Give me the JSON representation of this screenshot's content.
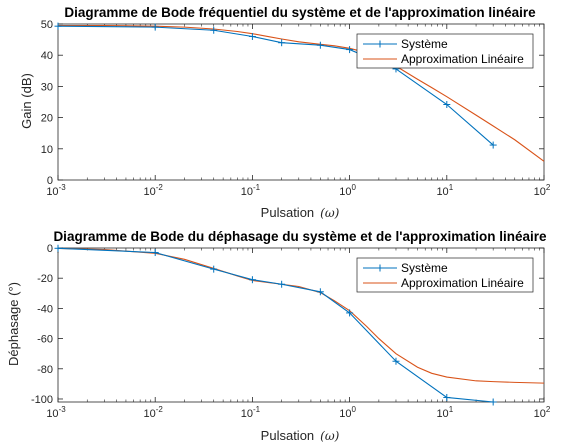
{
  "colors": {
    "systeme": "#0072BD",
    "approximation": "#D95319",
    "axes": "#262626",
    "grid": "#dcdcdc"
  },
  "chart_data": [
    {
      "type": "line",
      "title": "Diagramme de Bode fréquentiel du système et de l'approximation linéaire",
      "xlabel": "Pulsation",
      "xlabel_symbol": "(ω)",
      "ylabel": "Gain (dB)",
      "xscale": "log",
      "xlim": [
        0.001,
        100
      ],
      "ylim": [
        0,
        50
      ],
      "xticks": [
        0.001,
        0.01,
        0.1,
        1,
        10,
        100
      ],
      "xtick_labels": [
        [
          "10",
          "-3"
        ],
        [
          "10",
          "-2"
        ],
        [
          "10",
          "-1"
        ],
        [
          "10",
          "0"
        ],
        [
          "10",
          "1"
        ],
        [
          "10",
          "2"
        ]
      ],
      "yticks": [
        0,
        10,
        20,
        30,
        40,
        50
      ],
      "ytick_labels": [
        "0",
        "10",
        "20",
        "30",
        "40",
        "50"
      ],
      "grid": false,
      "legend_position": "top-right",
      "series": [
        {
          "name": "Système",
          "marker": "+",
          "color_key": "systeme",
          "x": [
            0.001,
            0.01,
            0.04,
            0.1,
            0.2,
            0.5,
            1,
            3,
            10,
            30
          ],
          "y": [
            49.3,
            49.0,
            48.0,
            46.0,
            44.0,
            43.2,
            41.8,
            35.6,
            24.2,
            11.2
          ]
        },
        {
          "name": "Approximation Linéaire",
          "marker": "",
          "color_key": "approximation",
          "x": [
            0.001,
            0.003,
            0.01,
            0.02,
            0.04,
            0.07,
            0.1,
            0.15,
            0.2,
            0.3,
            0.5,
            0.7,
            1,
            1.5,
            2,
            3,
            5,
            7,
            10,
            20,
            30,
            50,
            100
          ],
          "y": [
            49.5,
            49.5,
            49.3,
            49.0,
            48.4,
            47.6,
            46.9,
            45.9,
            45.2,
            44.3,
            43.5,
            43.0,
            42.2,
            40.8,
            39.3,
            36.5,
            32.3,
            29.6,
            26.7,
            20.8,
            17.3,
            12.9,
            6.0
          ]
        }
      ]
    },
    {
      "type": "line",
      "title": "Diagramme de Bode du déphasage du système et de l'approximation linéaire",
      "xlabel": "Pulsation",
      "xlabel_symbol": "(ω)",
      "ylabel": "Déphasage (°)",
      "xscale": "log",
      "xlim": [
        0.001,
        100
      ],
      "ylim": [
        -102,
        0
      ],
      "xticks": [
        0.001,
        0.01,
        0.1,
        1,
        10,
        100
      ],
      "xtick_labels": [
        [
          "10",
          "-3"
        ],
        [
          "10",
          "-2"
        ],
        [
          "10",
          "-1"
        ],
        [
          "10",
          "0"
        ],
        [
          "10",
          "1"
        ],
        [
          "10",
          "2"
        ]
      ],
      "yticks": [
        0,
        -20,
        -40,
        -60,
        -80,
        -100
      ],
      "ytick_labels": [
        "0",
        "-20",
        "-40",
        "-60",
        "-80",
        "-100"
      ],
      "grid": false,
      "legend_position": "top-right",
      "series": [
        {
          "name": "Système",
          "marker": "+",
          "color_key": "systeme",
          "x": [
            0.001,
            0.01,
            0.04,
            0.1,
            0.2,
            0.5,
            1,
            3,
            10,
            30
          ],
          "y": [
            -0.2,
            -3.0,
            -14.0,
            -21.0,
            -24.0,
            -29.0,
            -43.0,
            -75.0,
            -99.0,
            -102.0
          ]
        },
        {
          "name": "Approximation Linéaire",
          "marker": "",
          "color_key": "approximation",
          "x": [
            0.001,
            0.003,
            0.01,
            0.02,
            0.04,
            0.07,
            0.1,
            0.15,
            0.2,
            0.3,
            0.5,
            0.7,
            1,
            1.5,
            2,
            3,
            5,
            7,
            10,
            20,
            30,
            50,
            100
          ],
          "y": [
            -0.3,
            -1.0,
            -3.5,
            -7.5,
            -13.5,
            -18.5,
            -21.5,
            -23.0,
            -24.0,
            -25.5,
            -29.5,
            -35.0,
            -41.5,
            -52.0,
            -60.0,
            -70.0,
            -79.0,
            -83.0,
            -85.5,
            -88.0,
            -88.5,
            -89.0,
            -89.5
          ]
        }
      ]
    }
  ]
}
